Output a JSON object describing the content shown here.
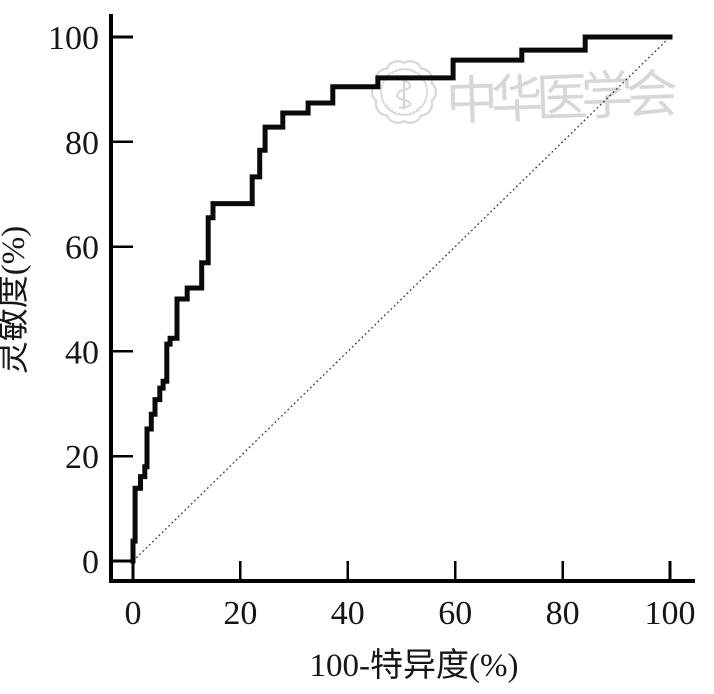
{
  "figure": {
    "kind": "roc-curve-plot",
    "background_color": "#ffffff",
    "axis_color": "#000000",
    "curve_color": "#0a0a0a",
    "diagonal_color": "#3c3c3c",
    "watermark_color": "#d7d7d7"
  },
  "chart_data": {
    "type": "line",
    "subtype": "roc-step-curve",
    "title": "",
    "xlabel": "100-特异度(%)",
    "ylabel": "灵敏度(%)",
    "xlim": [
      0,
      100
    ],
    "ylim": [
      0,
      100
    ],
    "x_ticks": [
      0,
      20,
      40,
      60,
      80,
      100
    ],
    "y_ticks": [
      0,
      20,
      40,
      60,
      80,
      100
    ],
    "x_tick_labels": [
      "0",
      "20",
      "40",
      "60",
      "80",
      "100"
    ],
    "y_tick_labels": [
      "0",
      "20",
      "40",
      "60",
      "80",
      "100"
    ],
    "grid": false,
    "legend": "none",
    "series": [
      {
        "name": "ROC curve",
        "line": "solid",
        "step": true,
        "width": 5,
        "points": [
          [
            0,
            0
          ],
          [
            0,
            3.8
          ],
          [
            0.4,
            3.8
          ],
          [
            0.4,
            13.9
          ],
          [
            1.4,
            13.9
          ],
          [
            1.4,
            16.1
          ],
          [
            2.2,
            16.1
          ],
          [
            2.2,
            18.0
          ],
          [
            2.6,
            18.0
          ],
          [
            2.6,
            25.2
          ],
          [
            3.4,
            25.2
          ],
          [
            3.4,
            28.0
          ],
          [
            4.1,
            28.0
          ],
          [
            4.1,
            30.8
          ],
          [
            5.0,
            30.8
          ],
          [
            5.0,
            33.0
          ],
          [
            5.6,
            33.0
          ],
          [
            5.6,
            34.3
          ],
          [
            6.3,
            34.3
          ],
          [
            6.3,
            41.4
          ],
          [
            6.9,
            41.4
          ],
          [
            6.9,
            42.5
          ],
          [
            8.2,
            42.5
          ],
          [
            8.2,
            50.0
          ],
          [
            10.1,
            50.0
          ],
          [
            10.1,
            52.1
          ],
          [
            12.8,
            52.1
          ],
          [
            12.8,
            56.9
          ],
          [
            14.0,
            56.9
          ],
          [
            14.0,
            65.5
          ],
          [
            14.9,
            65.5
          ],
          [
            14.9,
            68.2
          ],
          [
            22.2,
            68.2
          ],
          [
            22.2,
            73.3
          ],
          [
            23.6,
            73.3
          ],
          [
            23.6,
            78.4
          ],
          [
            24.6,
            78.4
          ],
          [
            24.6,
            82.8
          ],
          [
            27.9,
            82.8
          ],
          [
            27.9,
            85.5
          ],
          [
            32.6,
            85.5
          ],
          [
            32.6,
            87.4
          ],
          [
            37.2,
            87.4
          ],
          [
            37.2,
            90.5
          ],
          [
            45.6,
            90.5
          ],
          [
            45.6,
            92.2
          ],
          [
            59.6,
            92.2
          ],
          [
            59.6,
            95.6
          ],
          [
            72.4,
            95.6
          ],
          [
            72.4,
            97.5
          ],
          [
            84.2,
            97.5
          ],
          [
            84.2,
            100
          ],
          [
            100,
            100
          ]
        ]
      },
      {
        "name": "reference diagonal",
        "line": "dotted",
        "step": false,
        "width": 1.3,
        "points": [
          [
            0,
            0
          ],
          [
            100,
            100
          ]
        ]
      }
    ],
    "watermark": {
      "text": "中华医学会",
      "logo": "chinese-medical-association-seal"
    }
  }
}
